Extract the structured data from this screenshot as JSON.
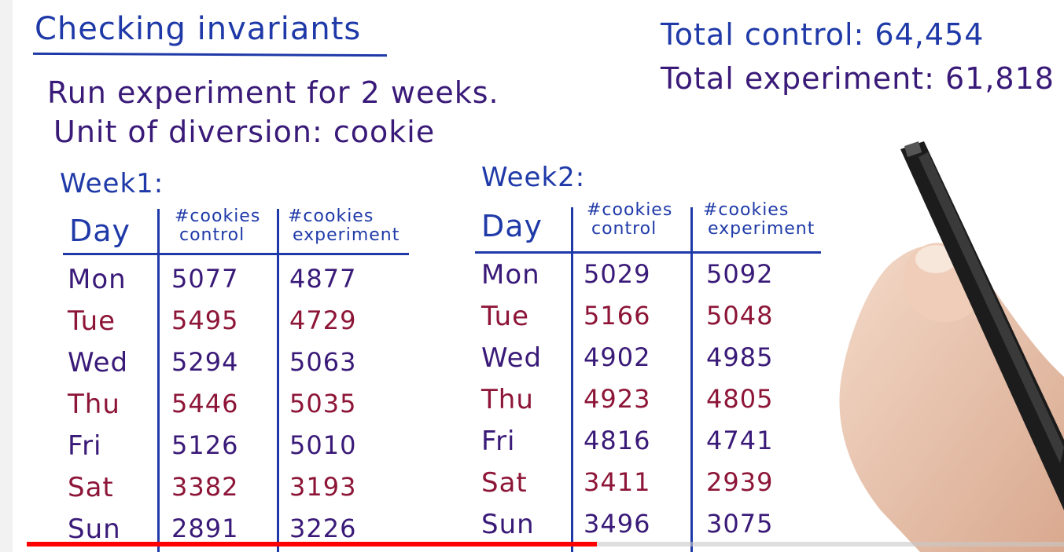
{
  "board": {
    "title": "Checking invariants",
    "line1": "Run experiment for 2 weeks.",
    "line2": "Unit of diversion: cookie",
    "total_control": "Total control: 64,454",
    "total_experiment": "Total experiment: 61,818"
  },
  "week1": {
    "label": "Week1:",
    "headers": {
      "day": "Day",
      "control": [
        "#cookies",
        "control"
      ],
      "experiment": [
        "#cookies",
        "experiment"
      ]
    },
    "rows": [
      {
        "day": "Mon",
        "control": "5077",
        "experiment": "4877"
      },
      {
        "day": "Tue",
        "control": "5495",
        "experiment": "4729"
      },
      {
        "day": "Wed",
        "control": "5294",
        "experiment": "5063"
      },
      {
        "day": "Thu",
        "control": "5446",
        "experiment": "5035"
      },
      {
        "day": "Fri",
        "control": "5126",
        "experiment": "5010"
      },
      {
        "day": "Sat",
        "control": "3382",
        "experiment": "3193"
      },
      {
        "day": "Sun",
        "control": "2891",
        "experiment": "3226"
      }
    ]
  },
  "week2": {
    "label": "Week2:",
    "headers": {
      "day": "Day",
      "control": [
        "#cookies",
        "control"
      ],
      "experiment": [
        "#cookies",
        "experiment"
      ]
    },
    "rows": [
      {
        "day": "Mon",
        "control": "5029",
        "experiment": "5092"
      },
      {
        "day": "Tue",
        "control": "5166",
        "experiment": "5048"
      },
      {
        "day": "Wed",
        "control": "4902",
        "experiment": "4985"
      },
      {
        "day": "Thu",
        "control": "4923",
        "experiment": "4805"
      },
      {
        "day": "Fri",
        "control": "4816",
        "experiment": "4741"
      },
      {
        "day": "Sat",
        "control": "3411",
        "experiment": "2939"
      },
      {
        "day": "Sun",
        "control": "3496",
        "experiment": "3075"
      }
    ]
  },
  "colors": {
    "ink_blue": "#1f3aa8",
    "ink_purple": "#3a1a78",
    "ink_maroon": "#8d1537",
    "progress_red": "#ff0000"
  },
  "player": {
    "progress_fraction": 0.55
  },
  "icons": {
    "hand": "hand-with-pen-icon"
  }
}
